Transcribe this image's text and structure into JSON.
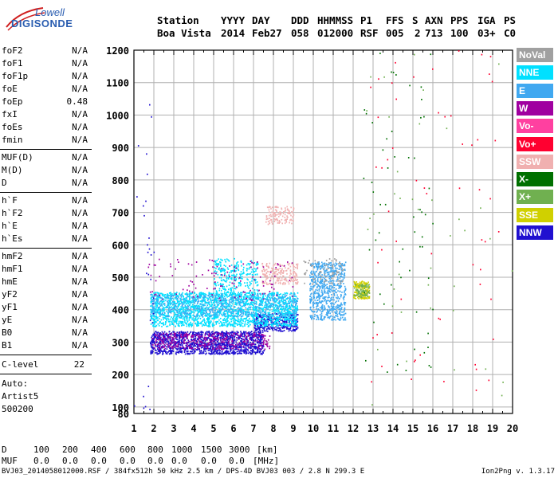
{
  "logo": {
    "line1": "Lowell",
    "line2": "DIGISONDE"
  },
  "header": {
    "labels": [
      "Station",
      "YYYY",
      "DAY",
      "DDD",
      "HHMMSS",
      "P1",
      "FFS",
      "S",
      "AXN",
      "PPS",
      "IGA",
      "PS"
    ],
    "values": [
      "Boa Vista",
      "2014",
      "Feb27",
      "058",
      "012000",
      "RSF",
      "005",
      "2",
      "713",
      "100",
      "03+",
      "C0"
    ]
  },
  "params": {
    "group1": [
      {
        "name": "foF2",
        "value": "N/A"
      },
      {
        "name": "foF1",
        "value": "N/A"
      },
      {
        "name": "foF1p",
        "value": "N/A"
      },
      {
        "name": "foE",
        "value": "N/A"
      },
      {
        "name": "foEp",
        "value": "0.48"
      },
      {
        "name": "fxI",
        "value": "N/A"
      },
      {
        "name": "foEs",
        "value": "N/A"
      },
      {
        "name": "fmin",
        "value": "N/A"
      }
    ],
    "group2": [
      {
        "name": "MUF(D)",
        "value": "N/A"
      },
      {
        "name": "M(D)",
        "value": "N/A"
      },
      {
        "name": "D",
        "value": "N/A"
      }
    ],
    "group3": [
      {
        "name": "h`F",
        "value": "N/A"
      },
      {
        "name": "h`F2",
        "value": "N/A"
      },
      {
        "name": "h`E",
        "value": "N/A"
      },
      {
        "name": "h`Es",
        "value": "N/A"
      }
    ],
    "group4": [
      {
        "name": "hmF2",
        "value": "N/A"
      },
      {
        "name": "hmF1",
        "value": "N/A"
      },
      {
        "name": "hmE",
        "value": "N/A"
      },
      {
        "name": "yF2",
        "value": "N/A"
      },
      {
        "name": "yF1",
        "value": "N/A"
      },
      {
        "name": "yE",
        "value": "N/A"
      },
      {
        "name": "B0",
        "value": "N/A"
      },
      {
        "name": "B1",
        "value": "N/A"
      }
    ],
    "clevel": {
      "name": "C-level",
      "value": "22"
    },
    "auto_label": "Auto:",
    "artist": "Artist5",
    "artist_version": "500200"
  },
  "legend": [
    {
      "label": "NoVal",
      "color": "#a0a0a0"
    },
    {
      "label": "NNE",
      "color": "#00e0ff"
    },
    {
      "label": "E",
      "color": "#40a8f0"
    },
    {
      "label": "W",
      "color": "#a000a0"
    },
    {
      "label": "Vo-",
      "color": "#ff40a0"
    },
    {
      "label": "Vo+",
      "color": "#ff0030"
    },
    {
      "label": "SSW",
      "color": "#f0b0b0"
    },
    {
      "label": "X-",
      "color": "#007000"
    },
    {
      "label": "X+",
      "color": "#70b050"
    },
    {
      "label": "SSE",
      "color": "#d0d000"
    },
    {
      "label": "NNW",
      "color": "#2010d0"
    }
  ],
  "chart_data": {
    "type": "scatter",
    "x": {
      "min": 1,
      "max": 20,
      "ticks": [
        "1",
        "2",
        "3",
        "4",
        "5",
        "6",
        "7",
        "8",
        "9",
        "10",
        "11",
        "12",
        "13",
        "14",
        "15",
        "16",
        "17",
        "18",
        "19",
        "20"
      ]
    },
    "y": {
      "min": 80,
      "max": 1200,
      "ticks": [
        "80",
        "100",
        "200",
        "300",
        "400",
        "500",
        "600",
        "700",
        "800",
        "900",
        "1000",
        "1100",
        "1200"
      ]
    },
    "clusters": [
      {
        "color": "#2010d0",
        "x0": 1.8,
        "x1": 7.5,
        "y0": 265,
        "y1": 335,
        "n": 1400
      },
      {
        "color": "#a000a0",
        "x0": 1.9,
        "x1": 7.8,
        "y0": 280,
        "y1": 330,
        "n": 350
      },
      {
        "color": "#2010d0",
        "x0": 7.0,
        "x1": 9.2,
        "y0": 335,
        "y1": 390,
        "n": 350
      },
      {
        "color": "#00e0ff",
        "x0": 1.8,
        "x1": 9.2,
        "y0": 350,
        "y1": 455,
        "n": 2000
      },
      {
        "color": "#40a8f0",
        "x0": 1.8,
        "x1": 9.2,
        "y0": 380,
        "y1": 450,
        "n": 600
      },
      {
        "color": "#00e0ff",
        "x0": 5.0,
        "x1": 7.2,
        "y0": 440,
        "y1": 560,
        "n": 300
      },
      {
        "color": "#40a8f0",
        "x0": 9.8,
        "x1": 11.6,
        "y0": 370,
        "y1": 550,
        "n": 700
      },
      {
        "color": "#d0d000",
        "x0": 12.0,
        "x1": 12.8,
        "y0": 435,
        "y1": 490,
        "n": 160
      },
      {
        "color": "#70b050",
        "x0": 12.0,
        "x1": 12.8,
        "y0": 440,
        "y1": 480,
        "n": 80
      },
      {
        "color": "#f0b0b0",
        "x0": 7.4,
        "x1": 9.2,
        "y0": 480,
        "y1": 545,
        "n": 200
      },
      {
        "color": "#f0b0b0",
        "x0": 7.6,
        "x1": 9.0,
        "y0": 665,
        "y1": 720,
        "n": 120
      },
      {
        "color": "#a0a0a0",
        "x0": 9.5,
        "x1": 11.5,
        "y0": 480,
        "y1": 560,
        "n": 80
      },
      {
        "color": "#a000a0",
        "x0": 1.7,
        "x1": 9.0,
        "y0": 430,
        "y1": 560,
        "n": 120
      },
      {
        "color": "#007000",
        "x0": 12.5,
        "x1": 16.0,
        "y0": 200,
        "y1": 1200,
        "n": 60
      },
      {
        "color": "#ff0030",
        "x0": 12.5,
        "x1": 19.5,
        "y0": 150,
        "y1": 1200,
        "n": 60
      },
      {
        "color": "#2010d0",
        "x0": 1.0,
        "x1": 2.0,
        "y0": 80,
        "y1": 1200,
        "n": 30
      },
      {
        "color": "#70b050",
        "x0": 12.5,
        "x1": 20.0,
        "y0": 100,
        "y1": 1200,
        "n": 40
      }
    ]
  },
  "footer": {
    "d_label": "D",
    "d_values": [
      "100",
      "200",
      "400",
      "600",
      "800",
      "1000",
      "1500",
      "3000"
    ],
    "d_unit": "[km]",
    "muf_label": "MUF",
    "muf_values": [
      "0.0",
      "0.0",
      "0.0",
      "0.0",
      "0.0",
      "0.0",
      "0.0",
      "0.0"
    ],
    "muf_unit": "[MHz]",
    "file_info": "BVJ03_2014058012000.RSF / 384fx512h 50 kHz 2.5 km / DPS-4D BVJ03 003 / 2.8 N 299.3 E",
    "version": "Ion2Png v. 1.3.17"
  }
}
